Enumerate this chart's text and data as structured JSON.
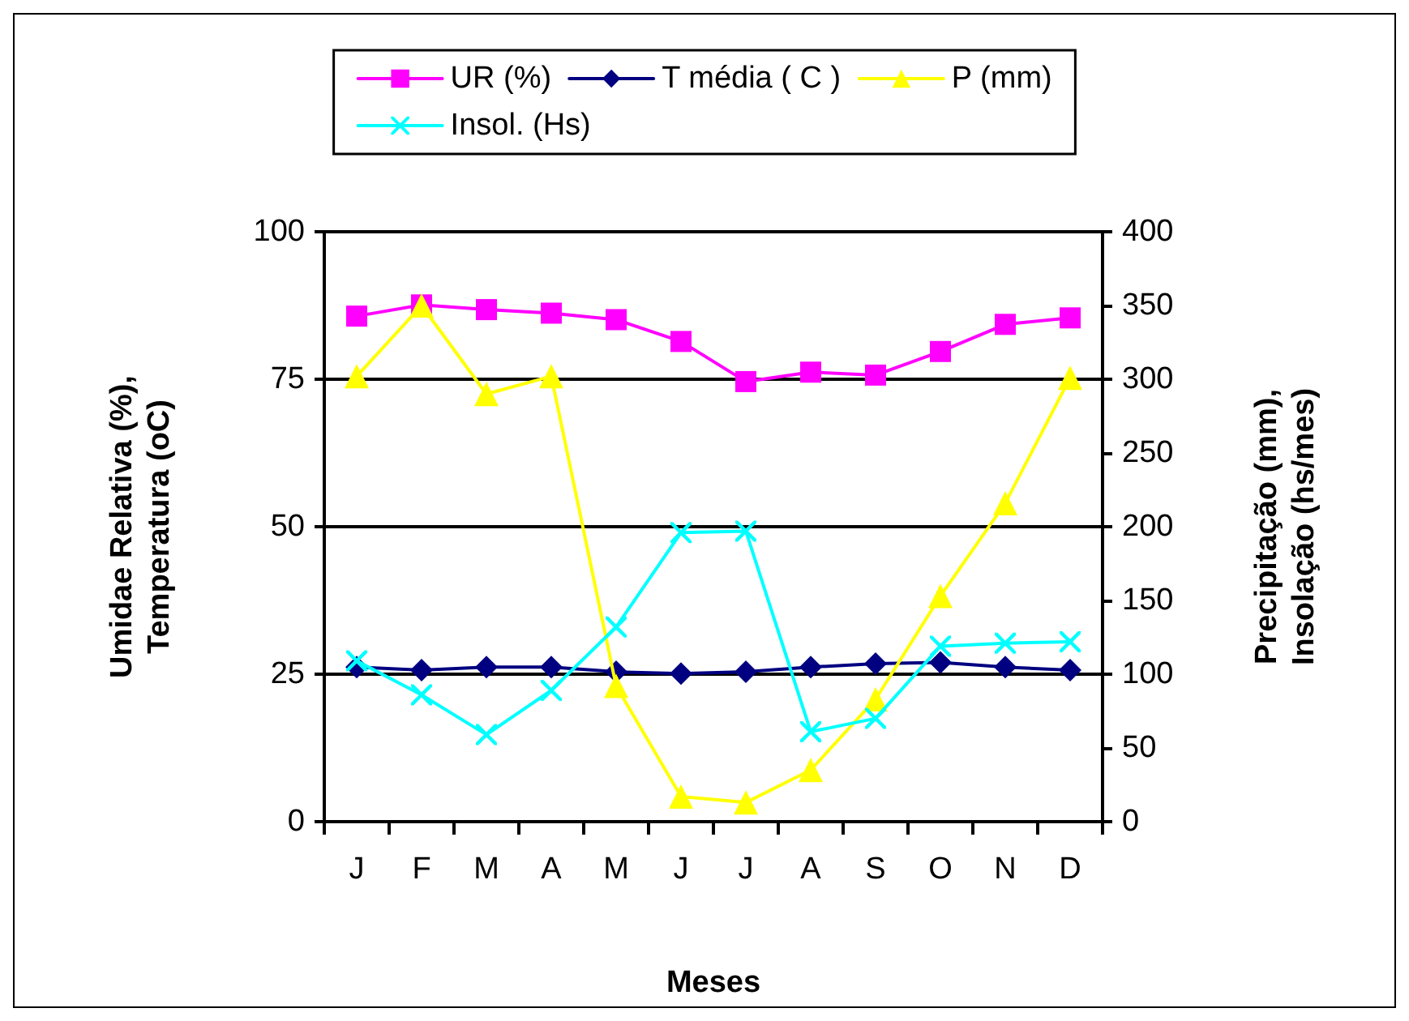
{
  "chart_data": {
    "type": "line",
    "xlabel": "Meses",
    "ylabel": "Umidae Relativa (%),\nTemperatura (oC)",
    "y2label": "Precipitação (mm),\nInsolação (hs/mes)",
    "categories": [
      "J",
      "F",
      "M",
      "A",
      "M",
      "J",
      "J",
      "A",
      "S",
      "O",
      "N",
      "D"
    ],
    "series": [
      {
        "name": "UR (%)",
        "color": "#ff00ff",
        "marker": "square",
        "values": [
          85.7,
          87.6,
          86.8,
          86.2,
          85.1,
          81.4,
          74.6,
          76.2,
          75.7,
          79.7,
          84.3,
          85.4
        ]
      },
      {
        "name": "T média ( C )",
        "color": "#000080",
        "marker": "diamond",
        "values": [
          26.2,
          25.7,
          26.2,
          26.2,
          25.4,
          25.1,
          25.4,
          26.2,
          26.8,
          27,
          26.2,
          25.7
        ]
      },
      {
        "name": "P (mm)",
        "color": "#ffff00",
        "marker": "triangle",
        "axis": "y2",
        "values": [
          302,
          350,
          290,
          302,
          92,
          17,
          13,
          35,
          83,
          153,
          216,
          301
        ]
      },
      {
        "name": "Insol. (Hs)",
        "color": "#00ffff",
        "marker": "cross",
        "axis": "y2",
        "values": [
          109,
          86,
          59,
          89,
          132,
          196,
          197,
          61,
          70,
          119,
          121,
          122
        ]
      }
    ],
    "ylim": [
      0,
      100
    ],
    "yticks": [
      0,
      25,
      50,
      75,
      100
    ],
    "y2lim": [
      0,
      400
    ],
    "y2ticks": [
      0,
      50,
      100,
      150,
      200,
      250,
      300,
      350,
      400
    ],
    "grid": "y",
    "legend": "top",
    "line_style": "solid"
  }
}
